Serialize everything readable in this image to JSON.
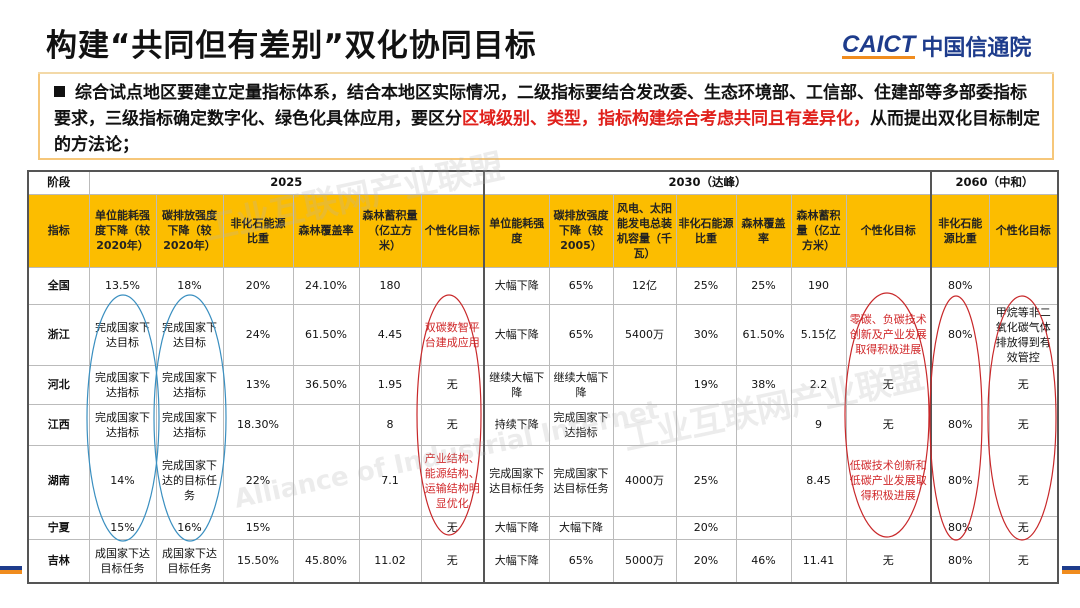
{
  "title": "构建“共同但有差别”双化协同目标",
  "logo": {
    "en": "CAICT",
    "cn": "中国信通院"
  },
  "intro": {
    "part1": "综合试点地区要建立定量指标体系，结合本地区实际情况，二级指标要结合发改委、生态环境部、工信部、住建部等多部委指标要求，三级指标确定数字化、绿色化具体应用，要区分",
    "red1": "区域级别、类型，指标构建综合考虑共同且有差异化，",
    "part2": "从而提出双化目标制定的方法论；"
  },
  "watermark": {
    "cn": "工业互联网产业联盟",
    "en": "Alliance of Industrial Internet"
  },
  "colors": {
    "header_bg": "#fcbd00",
    "accent_red": "#e0201b",
    "brand_blue": "#1e3c8c",
    "brand_orange": "#f08c1e"
  },
  "table": {
    "stage_label": "阶段",
    "stages": [
      "2025",
      "2030（达峰）",
      "2060（中和）"
    ],
    "indicator_label": "指标",
    "headers": [
      "单位能耗强度下降（较2020年）",
      "碳排放强度下降（较2020年）",
      "非化石能源比重",
      "森林覆盖率",
      "森林蓄积量（亿立方米）",
      "个性化目标",
      "单位能耗强度",
      "碳排放强度下降（较2005）",
      "风电、太阳能发电总装机容量（千瓦）",
      "非化石能源比重",
      "森林覆盖率",
      "森林蓄积量（亿立方米）",
      "个性化目标",
      "非化石能源比重",
      "个性化目标"
    ],
    "rows": [
      {
        "region": "全国",
        "cells": [
          "13.5%",
          "18%",
          "20%",
          "24.10%",
          "180",
          "",
          "大幅下降",
          "65%",
          "12亿",
          "25%",
          "25%",
          "190",
          "",
          "80%",
          ""
        ]
      },
      {
        "region": "浙江",
        "cells": [
          "完成国家下达目标",
          "完成国家下达目标",
          "24%",
          "61.50%",
          "4.45",
          "双碳数智平台建成应用",
          "大幅下降",
          "65%",
          "5400万",
          "30%",
          "61.50%",
          "5.15亿",
          "零碳、负碳技术创新及产业发展取得积极进展",
          "80%",
          "甲烷等非二氧化碳气体排放得到有效管控"
        ]
      },
      {
        "region": "河北",
        "cells": [
          "完成国家下达指标",
          "完成国家下达指标",
          "13%",
          "36.50%",
          "1.95",
          "无",
          "继续大幅下降",
          "继续大幅下降",
          "",
          "19%",
          "38%",
          "2.2",
          "无",
          "",
          "无"
        ]
      },
      {
        "region": "江西",
        "cells": [
          "完成国家下达指标",
          "完成国家下达指标",
          "18.30%",
          "",
          "8",
          "无",
          "持续下降",
          "完成国家下达指标",
          "",
          "",
          "",
          "9",
          "无",
          "80%",
          "无"
        ]
      },
      {
        "region": "湖南",
        "cells": [
          "14%",
          "完成国家下达的目标任务",
          "22%",
          "",
          "7.1",
          "产业结构、能源结构、运输结构明显优化",
          "完成国家下达目标任务",
          "完成国家下达目标任务",
          "4000万",
          "25%",
          "",
          "8.45",
          "低碳技术创新和低碳产业发展取得积极进展",
          "80%",
          "无"
        ]
      },
      {
        "region": "宁夏",
        "cells": [
          "15%",
          "16%",
          "15%",
          "",
          "",
          "无",
          "大幅下降",
          "大幅下降",
          "",
          "20%",
          "",
          "",
          "",
          "80%",
          "无"
        ]
      },
      {
        "region": "吉林",
        "cells": [
          "成国家下达目标任务",
          "成国家下达目标任务",
          "15.50%",
          "45.80%",
          "11.02",
          "无",
          "大幅下降",
          "65%",
          "5000万",
          "20%",
          "46%",
          "11.41",
          "无",
          "80%",
          "无"
        ]
      }
    ]
  }
}
